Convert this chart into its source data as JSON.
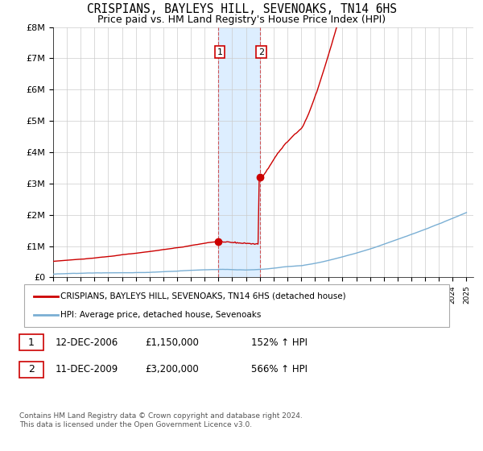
{
  "title": "CRISPIANS, BAYLEYS HILL, SEVENOAKS, TN14 6HS",
  "subtitle": "Price paid vs. HM Land Registry's House Price Index (HPI)",
  "ylim": [
    0,
    8000000
  ],
  "yticks": [
    0,
    1000000,
    2000000,
    3000000,
    4000000,
    5000000,
    6000000,
    7000000,
    8000000
  ],
  "ytick_labels": [
    "£0",
    "£1M",
    "£2M",
    "£3M",
    "£4M",
    "£5M",
    "£6M",
    "£7M",
    "£8M"
  ],
  "sale1_year": 2007.0,
  "sale1_price": 1150000,
  "sale2_year": 2010.0,
  "sale2_price": 3200000,
  "shade_x1": 2007.0,
  "shade_x2": 2010.0,
  "hpi_color": "#7aafd4",
  "price_color": "#cc0000",
  "shade_color": "#ddeeff",
  "legend_house": "CRISPIANS, BAYLEYS HILL, SEVENOAKS, TN14 6HS (detached house)",
  "legend_hpi": "HPI: Average price, detached house, Sevenoaks",
  "table_rows": [
    {
      "num": "1",
      "date": "12-DEC-2006",
      "price": "£1,150,000",
      "pct": "152% ↑ HPI"
    },
    {
      "num": "2",
      "date": "11-DEC-2009",
      "price": "£3,200,000",
      "pct": "566% ↑ HPI"
    }
  ],
  "footnote": "Contains HM Land Registry data © Crown copyright and database right 2024.\nThis data is licensed under the Open Government Licence v3.0.",
  "background_color": "#ffffff",
  "grid_color": "#cccccc",
  "xlim_start": 1995,
  "xlim_end": 2025.5
}
